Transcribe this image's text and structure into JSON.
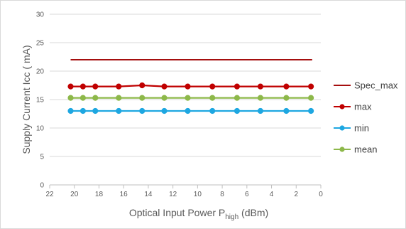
{
  "chart_data": {
    "type": "line",
    "xlabel_main": "Optical Input Power P",
    "xlabel_sub": "high",
    "xlabel_tail": " (dBm)",
    "ylabel": "Supply Current Icc ( mA)",
    "x_reversed": true,
    "xlim": [
      0,
      22
    ],
    "ylim": [
      0,
      30
    ],
    "x_ticks": [
      "22",
      "20",
      "18",
      "16",
      "14",
      "12",
      "10",
      "8",
      "6",
      "4",
      "2",
      "0"
    ],
    "y_ticks": [
      "0",
      "5",
      "10",
      "15",
      "20",
      "25",
      "30"
    ],
    "grid": "horizontal",
    "legend_position": "right",
    "series": [
      {
        "name": "Spec_max",
        "color": "#a50e0e",
        "marker": "none",
        "x": [
          20.3,
          0.7
        ],
        "y": [
          22,
          22
        ]
      },
      {
        "name": "max",
        "color": "#c00000",
        "marker": "circle",
        "x": [
          20.3,
          19.3,
          18.3,
          16.4,
          14.5,
          12.7,
          10.8,
          8.8,
          6.8,
          4.9,
          2.8,
          0.8
        ],
        "y": [
          17.3,
          17.3,
          17.3,
          17.3,
          17.5,
          17.3,
          17.3,
          17.3,
          17.3,
          17.3,
          17.3,
          17.3
        ]
      },
      {
        "name": "min",
        "color": "#1ea7e1",
        "marker": "circle",
        "x": [
          20.3,
          19.3,
          18.3,
          16.4,
          14.5,
          12.7,
          10.8,
          8.8,
          6.8,
          4.9,
          2.8,
          0.8
        ],
        "y": [
          13,
          13,
          13,
          13,
          13,
          13,
          13,
          13,
          13,
          13,
          13,
          13
        ]
      },
      {
        "name": "mean",
        "color": "#8db84a",
        "marker": "circle",
        "x": [
          20.3,
          19.3,
          18.3,
          16.4,
          14.5,
          12.7,
          10.8,
          8.8,
          6.8,
          4.9,
          2.8,
          0.8
        ],
        "y": [
          15.3,
          15.3,
          15.3,
          15.3,
          15.3,
          15.3,
          15.3,
          15.3,
          15.3,
          15.3,
          15.3,
          15.3
        ]
      }
    ]
  }
}
